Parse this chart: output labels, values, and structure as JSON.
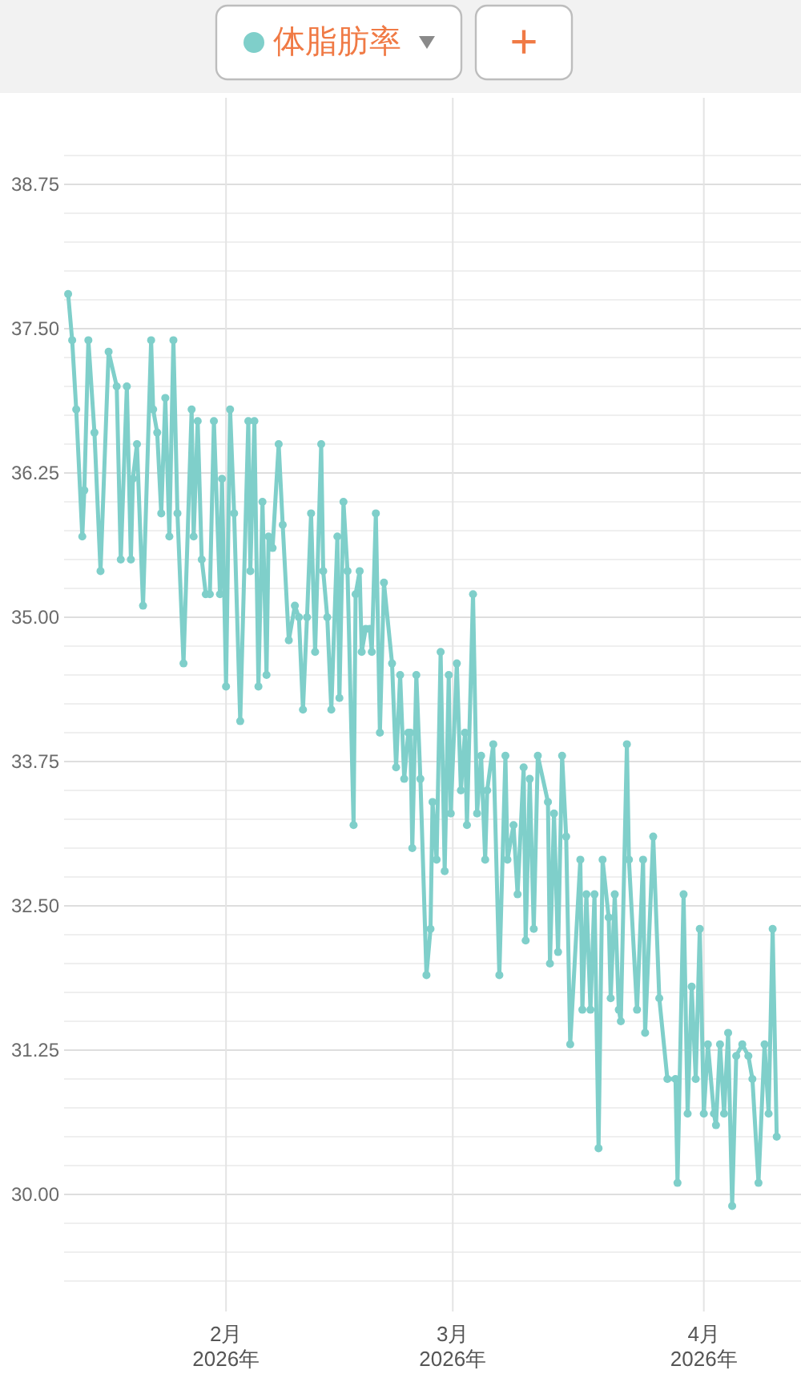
{
  "chart_data": {
    "type": "line",
    "x": [
      "2026-01-12T12:00",
      "2026-01-13T00:00",
      "2026-01-13T12:00",
      "2026-01-14T06:00",
      "2026-01-14T12:00",
      "2026-01-15T00:00",
      "2026-01-15T18:00",
      "2026-01-16T12:00",
      "2026-01-17T12:00",
      "2026-01-18T12:00",
      "2026-01-19T00:00",
      "2026-01-19T18:00",
      "2026-01-20T06:00",
      "2026-01-20T12:00",
      "2026-01-21T00:00",
      "2026-01-21T18:00",
      "2026-01-22T18:00",
      "2026-01-23T00:00",
      "2026-01-23T12:00",
      "2026-01-24T00:00",
      "2026-01-24T12:00",
      "2026-01-25T00:00",
      "2026-01-25T12:00",
      "2026-01-26T00:00",
      "2026-01-26T18:00",
      "2026-01-27T18:00",
      "2026-01-28T00:00",
      "2026-01-28T12:00",
      "2026-01-29T00:00",
      "2026-01-29T12:00",
      "2026-01-30T00:00",
      "2026-01-30T12:00",
      "2026-01-31T06:00",
      "2026-01-31T12:00",
      "2026-02-01T00:00",
      "2026-02-01T12:00",
      "2026-02-02T00:00",
      "2026-02-02T18:00",
      "2026-02-03T18:00",
      "2026-02-04T00:00",
      "2026-02-04T12:00",
      "2026-02-05T00:00",
      "2026-02-05T12:00",
      "2026-02-06T00:00",
      "2026-02-06T06:00",
      "2026-02-06T18:00",
      "2026-02-07T12:00",
      "2026-02-08T00:00",
      "2026-02-08T18:00",
      "2026-02-09T12:00",
      "2026-02-10T00:00",
      "2026-02-10T12:00",
      "2026-02-11T00:00",
      "2026-02-11T12:00",
      "2026-02-12T00:00",
      "2026-02-12T18:00",
      "2026-02-13T00:00",
      "2026-02-13T12:00",
      "2026-02-14T00:00",
      "2026-02-14T18:00",
      "2026-02-15T00:00",
      "2026-02-15T12:00",
      "2026-02-16T00:00",
      "2026-02-16T18:00",
      "2026-02-17T00:00",
      "2026-02-17T12:00",
      "2026-02-17T18:00",
      "2026-02-18T06:00",
      "2026-02-18T18:00",
      "2026-02-19T00:00",
      "2026-02-19T12:00",
      "2026-02-20T00:00",
      "2026-02-20T12:00",
      "2026-02-21T12:00",
      "2026-02-22T00:00",
      "2026-02-22T12:00",
      "2026-02-23T00:00",
      "2026-02-23T12:00",
      "2026-02-23T18:00",
      "2026-02-24T00:00",
      "2026-02-24T12:00",
      "2026-02-25T00:00",
      "2026-02-25T18:00",
      "2026-02-26T06:00",
      "2026-02-26T12:00",
      "2026-02-27T00:00",
      "2026-02-27T12:00",
      "2026-02-28T00:00",
      "2026-02-28T12:00",
      "2026-02-28T18:00",
      "2026-03-01T12:00",
      "2026-03-02T00:00",
      "2026-03-02T12:00",
      "2026-03-02T18:00",
      "2026-03-03T12:00",
      "2026-03-04T00:00",
      "2026-03-04T12:00",
      "2026-03-05T00:00",
      "2026-03-05T06:00",
      "2026-03-06T00:00",
      "2026-03-06T18:00",
      "2026-03-07T12:00",
      "2026-03-07T18:00",
      "2026-03-08T12:00",
      "2026-03-09T00:00",
      "2026-03-09T18:00",
      "2026-03-10T00:00",
      "2026-03-10T12:00",
      "2026-03-11T00:00",
      "2026-03-11T12:00",
      "2026-03-12T18:00",
      "2026-03-13T00:00",
      "2026-03-13T12:00",
      "2026-03-14T00:00",
      "2026-03-14T12:00",
      "2026-03-15T00:00",
      "2026-03-15T12:00",
      "2026-03-16T18:00",
      "2026-03-17T00:00",
      "2026-03-17T12:00",
      "2026-03-18T00:00",
      "2026-03-18T12:00",
      "2026-03-19T00:00",
      "2026-03-19T12:00",
      "2026-03-20T06:00",
      "2026-03-20T12:00",
      "2026-03-21T00:00",
      "2026-03-21T12:00",
      "2026-03-21T18:00",
      "2026-03-22T12:00",
      "2026-03-22T18:00",
      "2026-03-23T18:00",
      "2026-03-24T12:00",
      "2026-03-24T18:00",
      "2026-03-25T18:00",
      "2026-03-26T12:00",
      "2026-03-27T12:00",
      "2026-03-28T12:00",
      "2026-03-28T18:00",
      "2026-03-29T12:00",
      "2026-03-30T00:00",
      "2026-03-30T12:00",
      "2026-03-31T00:00",
      "2026-03-31T12:00",
      "2026-04-01T00:00",
      "2026-04-01T12:00",
      "2026-04-02T06:00",
      "2026-04-02T12:00",
      "2026-04-03T00:00",
      "2026-04-03T12:00",
      "2026-04-04T00:00",
      "2026-04-04T12:00",
      "2026-04-05T00:00",
      "2026-04-05T18:00",
      "2026-04-06T12:00",
      "2026-04-07T00:00",
      "2026-04-07T18:00",
      "2026-04-08T12:00",
      "2026-04-09T00:00",
      "2026-04-09T12:00",
      "2026-04-10T00:00"
    ],
    "series": [
      {
        "name": "体脂肪率",
        "color": "#7fcfca",
        "values": [
          37.8,
          37.4,
          36.8,
          35.7,
          36.1,
          37.4,
          36.6,
          35.4,
          37.3,
          37.0,
          35.5,
          37.0,
          35.5,
          36.2,
          36.5,
          35.1,
          37.4,
          36.8,
          36.6,
          35.9,
          36.9,
          35.7,
          37.4,
          35.9,
          34.6,
          36.8,
          35.7,
          36.7,
          35.5,
          35.2,
          35.2,
          36.7,
          35.2,
          36.2,
          34.4,
          36.8,
          35.9,
          34.1,
          36.7,
          35.4,
          36.7,
          34.4,
          36.0,
          34.5,
          35.7,
          35.6,
          36.5,
          35.8,
          34.8,
          35.1,
          35.0,
          34.2,
          35.0,
          35.9,
          34.7,
          36.5,
          35.4,
          35.0,
          34.2,
          35.7,
          34.3,
          36.0,
          35.4,
          33.2,
          35.2,
          35.4,
          34.7,
          34.9,
          34.9,
          34.7,
          35.9,
          34.0,
          35.3,
          34.6,
          33.7,
          34.5,
          33.6,
          34.0,
          34.0,
          33.0,
          34.5,
          33.6,
          31.9,
          32.3,
          33.4,
          32.9,
          34.7,
          32.8,
          34.5,
          33.3,
          34.6,
          33.5,
          34.0,
          33.2,
          35.2,
          33.3,
          33.8,
          32.9,
          33.5,
          33.9,
          31.9,
          33.8,
          32.9,
          33.2,
          32.6,
          33.7,
          32.2,
          33.6,
          32.3,
          33.8,
          33.4,
          32.0,
          33.3,
          32.1,
          33.8,
          33.1,
          31.3,
          32.9,
          31.6,
          32.6,
          31.6,
          32.6,
          30.4,
          32.9,
          32.4,
          31.7,
          32.6,
          31.6,
          31.5,
          33.9,
          32.9,
          31.6,
          32.9,
          31.4,
          33.1,
          31.7,
          31.0,
          31.0,
          30.1,
          32.6,
          30.7,
          31.8,
          31.0,
          32.3,
          30.7,
          31.3,
          30.7,
          30.6,
          31.3,
          30.7,
          31.4,
          29.9,
          31.2,
          31.3,
          31.2,
          31.0,
          30.1,
          31.3,
          30.7,
          32.3,
          30.5
        ]
      }
    ],
    "xlim": [
      "2026-01-12",
      "2026-04-13"
    ],
    "xticks": [
      {
        "value": "2026-02-01",
        "label": "2月\n2026年"
      },
      {
        "value": "2026-03-01",
        "label": "3月\n2026年"
      },
      {
        "value": "2026-04-01",
        "label": "4月\n2026年"
      }
    ],
    "ylim": [
      29,
      39.5
    ],
    "yticks": [
      {
        "value": 29.25,
        "label": null
      },
      {
        "value": 29.5,
        "label": null
      },
      {
        "value": 29.75,
        "label": null
      },
      {
        "value": 30,
        "label": "30.00"
      },
      {
        "value": 30.25,
        "label": null
      },
      {
        "value": 30.5,
        "label": null
      },
      {
        "value": 30.75,
        "label": null
      },
      {
        "value": 31,
        "label": null
      },
      31.25,
      {
        "value": 31.5,
        "label": null
      },
      {
        "value": 31.75,
        "label": null
      },
      {
        "value": 32,
        "label": null
      },
      {
        "value": 32.25,
        "label": null
      },
      {
        "value": 32.5,
        "label": "32.50"
      },
      {
        "value": 32.75,
        "label": null
      },
      {
        "value": 33,
        "label": null
      },
      {
        "value": 33.25,
        "label": null
      },
      {
        "value": 33.5,
        "label": null
      },
      33.75,
      {
        "value": 34,
        "label": null
      },
      {
        "value": 34.25,
        "label": null
      },
      {
        "value": 34.5,
        "label": null
      },
      {
        "value": 34.75,
        "label": null
      },
      {
        "value": 35,
        "label": "35.00"
      },
      {
        "value": 35.25,
        "label": null
      },
      {
        "value": 35.5,
        "label": null
      },
      {
        "value": 35.75,
        "label": null
      },
      {
        "value": 36,
        "label": null
      },
      36.25,
      {
        "value": 36.5,
        "label": null
      },
      {
        "value": 36.75,
        "label": null
      },
      {
        "value": 37,
        "label": null
      },
      {
        "value": 37.25,
        "label": null
      },
      {
        "value": 37.5,
        "label": "37.50"
      },
      {
        "value": 37.75,
        "label": null
      },
      {
        "value": 38,
        "label": null
      },
      {
        "value": 38.25,
        "label": null
      },
      {
        "value": 38.5,
        "label": null
      },
      38.75,
      {
        "value": 39,
        "label": null
      }
    ],
    "grid": true,
    "legend": "top",
    "marker": "circle",
    "line_style": "solid",
    "annotations": [
      "+"
    ]
  }
}
